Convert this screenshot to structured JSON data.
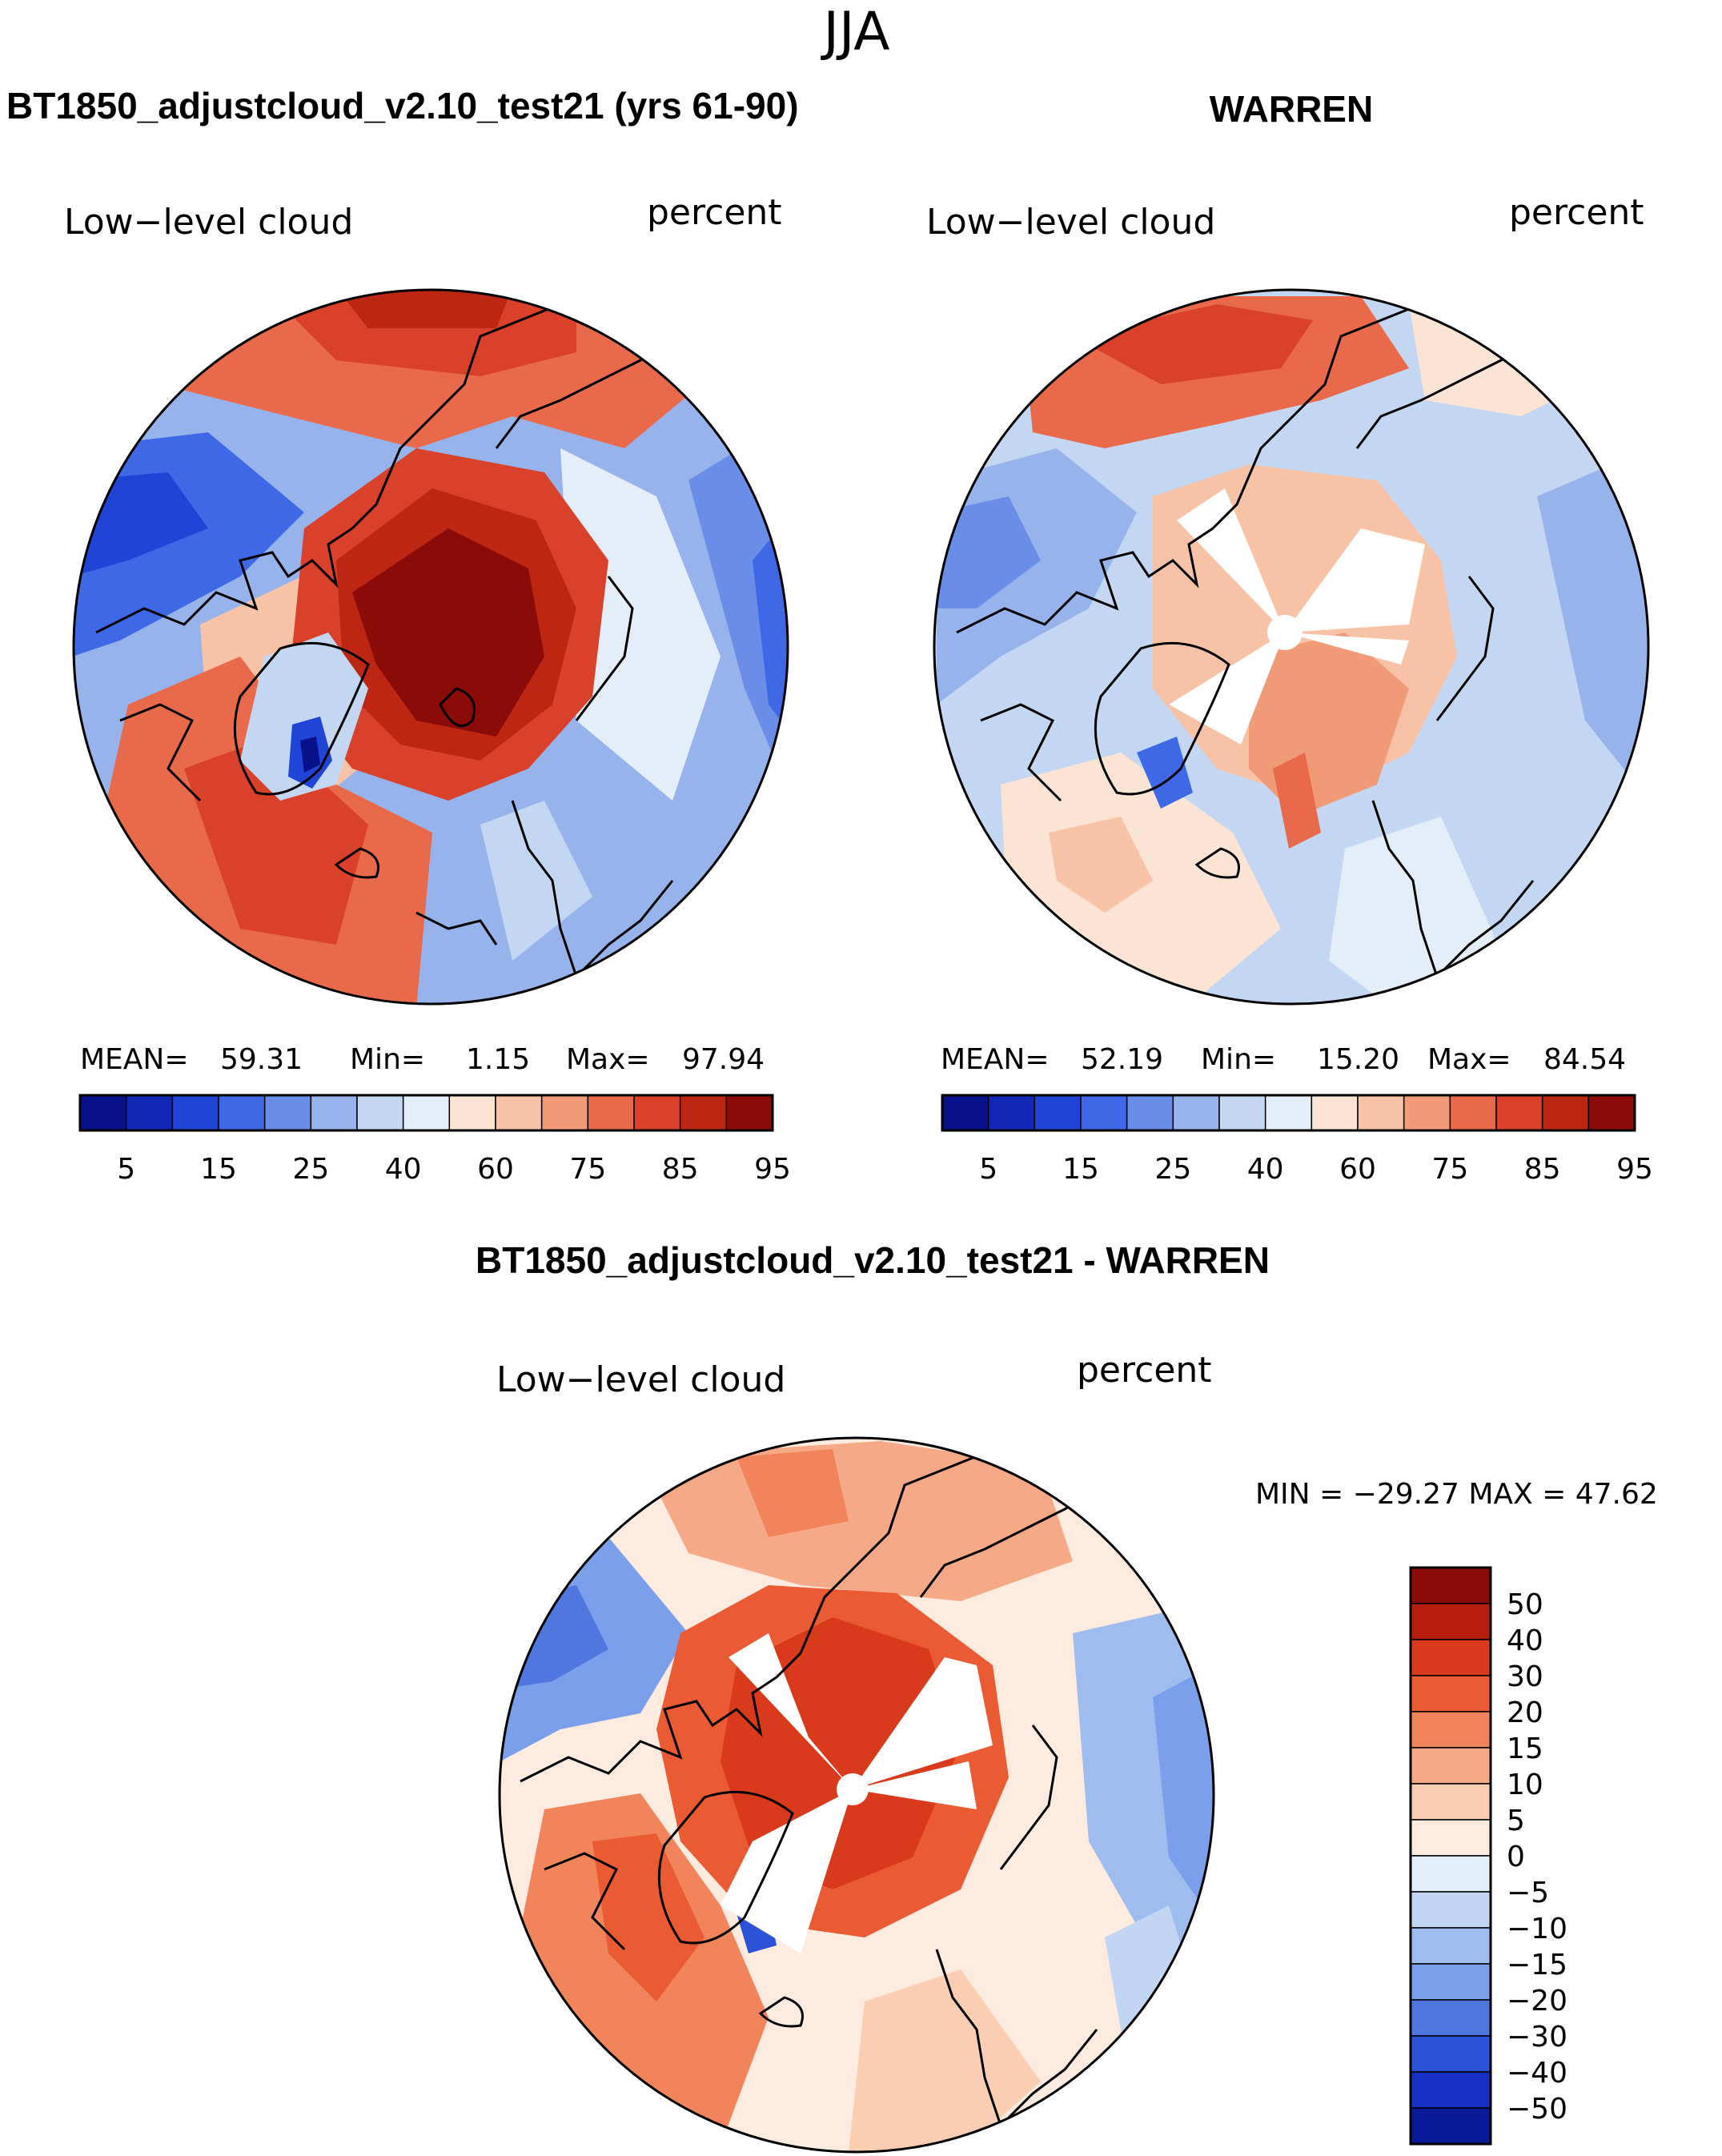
{
  "season": "JJA",
  "panels": [
    {
      "title": "BT1850_adjustcloud_v2.10_test21 (yrs 61-90)",
      "variable": "Low−level cloud",
      "units": "percent",
      "stats": {
        "mean_label": "MEAN=",
        "mean": "59.31",
        "min_label": "Min=",
        "min": "1.15",
        "max_label": "Max=",
        "max": "97.94"
      },
      "missing_sectors": false
    },
    {
      "title": "WARREN",
      "variable": "Low−level cloud",
      "units": "percent",
      "stats": {
        "mean_label": "MEAN=",
        "mean": "52.19",
        "min_label": "Min=",
        "min": "15.20",
        "max_label": "Max=",
        "max": "84.54"
      },
      "missing_sectors": true
    }
  ],
  "abs_colorbar": {
    "colors": [
      "#08108a",
      "#1227b5",
      "#2045d6",
      "#3f68e6",
      "#6a8ee8",
      "#97b3ec",
      "#c4d7f2",
      "#e4eef9",
      "#fbe4d4",
      "#f7c2a6",
      "#f19a78",
      "#e96a4a",
      "#d9412a",
      "#be2614",
      "#8b0b09"
    ],
    "labels": [
      "5",
      "15",
      "25",
      "40",
      "60",
      "75",
      "85",
      "95"
    ]
  },
  "diff_panel": {
    "title": "BT1850_adjustcloud_v2.10_test21 - WARREN",
    "variable": "Low−level cloud",
    "units": "percent",
    "minmax_text": "MIN = −29.27 MAX =   47.62"
  },
  "diff_colorbar": {
    "colors": [
      "#8b0b09",
      "#b71e10",
      "#d93a1c",
      "#ea5a33",
      "#f2845c",
      "#f6a987",
      "#fbcdb3",
      "#fdebdf",
      "#e3eefb",
      "#c2d6f4",
      "#9fbcef",
      "#7b9fea",
      "#5077e0",
      "#2c52d8",
      "#1830c4",
      "#0a1a98"
    ],
    "labels": [
      "50",
      "40",
      "30",
      "20",
      "15",
      "10",
      "5",
      "0",
      "−5",
      "−10",
      "−15",
      "−20",
      "−30",
      "−40",
      "−50"
    ]
  }
}
